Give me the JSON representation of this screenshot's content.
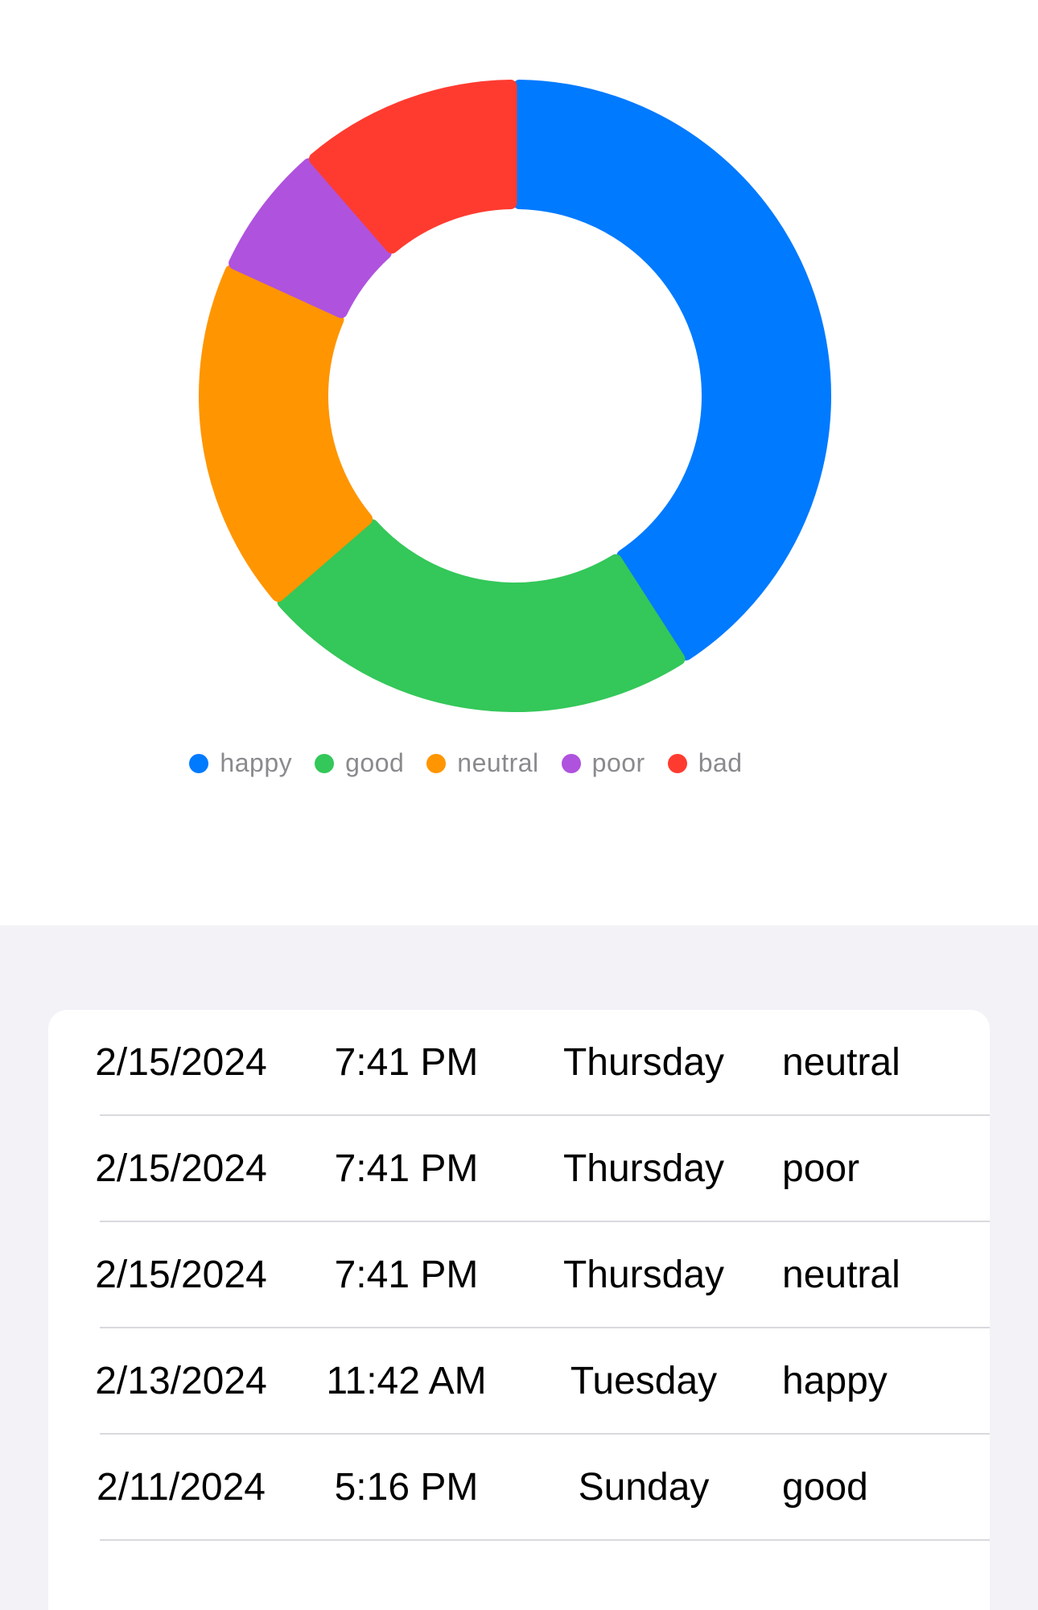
{
  "chart_data": {
    "type": "pie",
    "donut": true,
    "categories": [
      "happy",
      "good",
      "neutral",
      "poor",
      "bad"
    ],
    "values": [
      9,
      5,
      4,
      1.5,
      2.5
    ],
    "colors": [
      "#007aff",
      "#34c759",
      "#ff9500",
      "#af52de",
      "#ff3b30"
    ],
    "legend_position": "bottom",
    "title": ""
  },
  "legend": [
    {
      "label": "happy",
      "color": "#007aff"
    },
    {
      "label": "good",
      "color": "#34c759"
    },
    {
      "label": "neutral",
      "color": "#ff9500"
    },
    {
      "label": "poor",
      "color": "#af52de"
    },
    {
      "label": "bad",
      "color": "#ff3b30"
    }
  ],
  "entries": [
    {
      "date": "2/15/2024",
      "time": "7:41 PM",
      "day": "Thursday",
      "mood": "neutral"
    },
    {
      "date": "2/15/2024",
      "time": "7:41 PM",
      "day": "Thursday",
      "mood": "poor"
    },
    {
      "date": "2/15/2024",
      "time": "7:41 PM",
      "day": "Thursday",
      "mood": "neutral"
    },
    {
      "date": "2/13/2024",
      "time": "11:42 AM",
      "day": "Tuesday",
      "mood": "happy"
    },
    {
      "date": "2/11/2024",
      "time": "5:16 PM",
      "day": "Sunday",
      "mood": "good"
    }
  ]
}
